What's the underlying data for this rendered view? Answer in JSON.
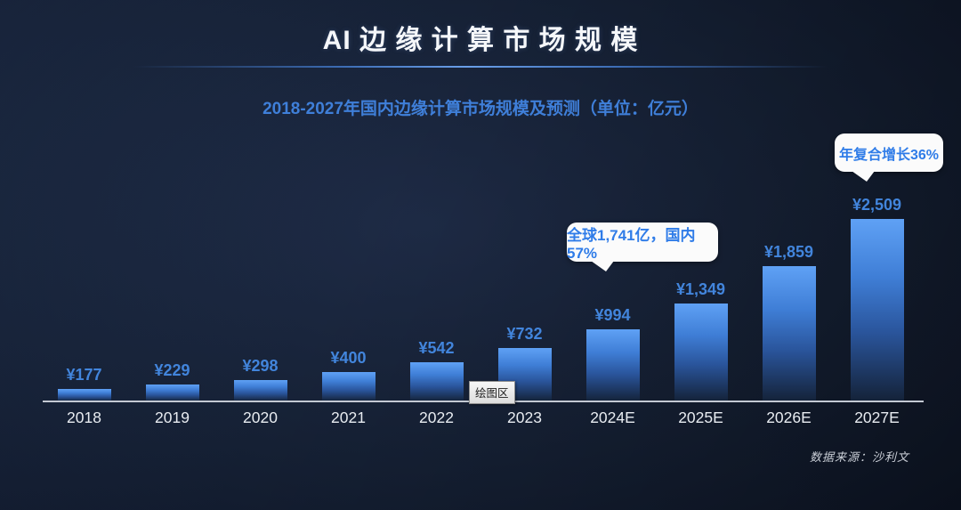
{
  "header": {
    "title": "AI 边 缘 计 算 市 场 规 模"
  },
  "subtitle": "2018-2027年国内边缘计算市场规模及预测（单位：亿元）",
  "chart_data": {
    "type": "bar",
    "title": "2018-2027年国内边缘计算市场规模及预测（单位：亿元）",
    "categories": [
      "2018",
      "2019",
      "2020",
      "2021",
      "2022",
      "2023",
      "2024E",
      "2025E",
      "2026E",
      "2027E"
    ],
    "values": [
      177,
      229,
      298,
      400,
      542,
      732,
      994,
      1349,
      1859,
      2509
    ],
    "value_labels": [
      "¥177",
      "¥229",
      "¥298",
      "¥400",
      "¥542",
      "¥732",
      "¥994",
      "¥1,349",
      "¥1,859",
      "¥2,509"
    ],
    "unit": "亿元",
    "ylim": [
      0,
      2509
    ],
    "grid": false,
    "legend": false,
    "annotations": [
      {
        "text": "全球1,741亿，国内57%",
        "target_category": "2024E"
      },
      {
        "text": "年复合增长36%",
        "target_category": "2027E"
      }
    ]
  },
  "callouts": {
    "global_share": {
      "text": "全球1,741亿，国内57%"
    },
    "cagr": {
      "text": "年复合增长36%"
    }
  },
  "tooltip": {
    "label": "绘图区"
  },
  "footer": {
    "source": "数据来源：沙利文"
  },
  "colors": {
    "bar_top": "#5FA1F5",
    "bar_bottom": "#142238",
    "value_label": "#4285DC",
    "subtitle": "#3F7FD9",
    "axis_line": "#C3C9D3",
    "callout_bg": "#FBFBFB",
    "callout_text": "#2F7CE8",
    "background": "#152034"
  }
}
